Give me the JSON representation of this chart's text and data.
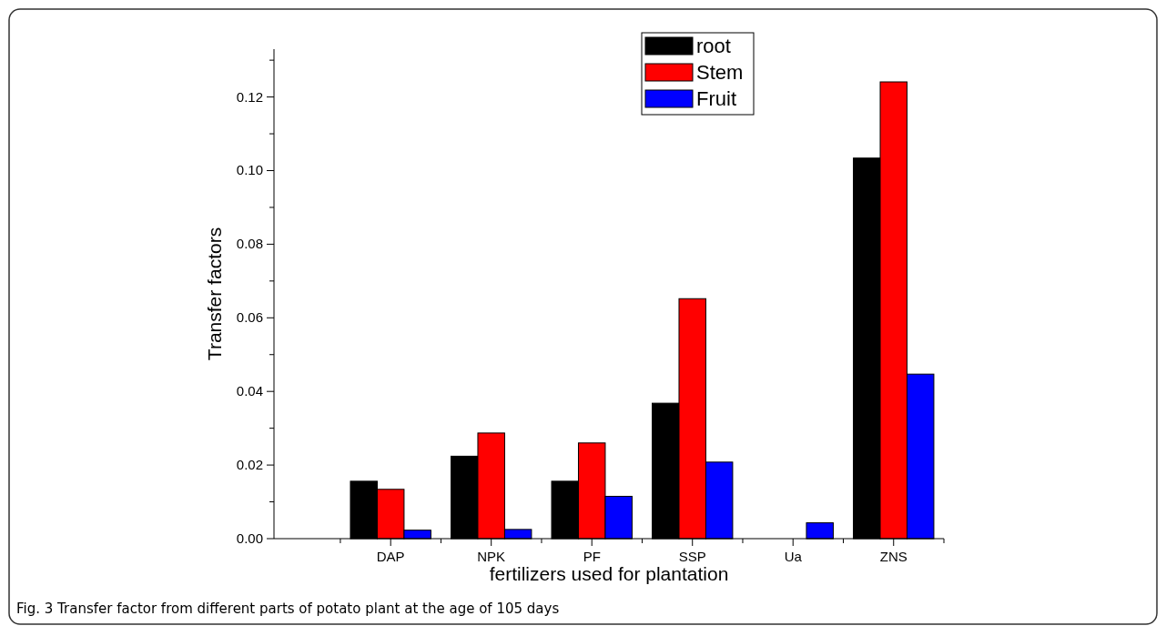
{
  "chart_data": {
    "type": "bar",
    "xlabel": "fertilizers used for plantation",
    "ylabel": "Transfer factors",
    "categories": [
      "DAP",
      "NPK",
      "PF",
      "SSP",
      "Ua",
      "ZNS"
    ],
    "series": [
      {
        "name": "root",
        "color": "#000000",
        "values": [
          0.0156,
          0.0224,
          0.0156,
          0.0368,
          0,
          0.1034
        ]
      },
      {
        "name": "Stem",
        "color": "#ff0000",
        "values": [
          0.0134,
          0.0287,
          0.026,
          0.0652,
          0,
          0.1241
        ]
      },
      {
        "name": "Fruit",
        "color": "#0000ff",
        "values": [
          0.0023,
          0.0025,
          0.0115,
          0.0208,
          0.0043,
          0.0447
        ]
      }
    ],
    "ylim": [
      0,
      0.133
    ],
    "yticks": [
      {
        "value": 0,
        "label": "0.00"
      },
      {
        "value": 0.01,
        "label": null
      },
      {
        "value": 0.02,
        "label": "0.02"
      },
      {
        "value": 0.03,
        "label": null
      },
      {
        "value": 0.04,
        "label": "0.04"
      },
      {
        "value": 0.05,
        "label": null
      },
      {
        "value": 0.06,
        "label": "0.06"
      },
      {
        "value": 0.07,
        "label": null
      },
      {
        "value": 0.08,
        "label": "0.08"
      },
      {
        "value": 0.09,
        "label": null
      },
      {
        "value": 0.1,
        "label": "0.10"
      },
      {
        "value": 0.11,
        "label": null
      },
      {
        "value": 0.12,
        "label": "0.12"
      },
      {
        "value": 0.13,
        "label": null
      }
    ],
    "legend": "top",
    "annotations": [
      "Fig. 3 Transfer factor from different parts of potato plant at the age of 105 days"
    ]
  }
}
